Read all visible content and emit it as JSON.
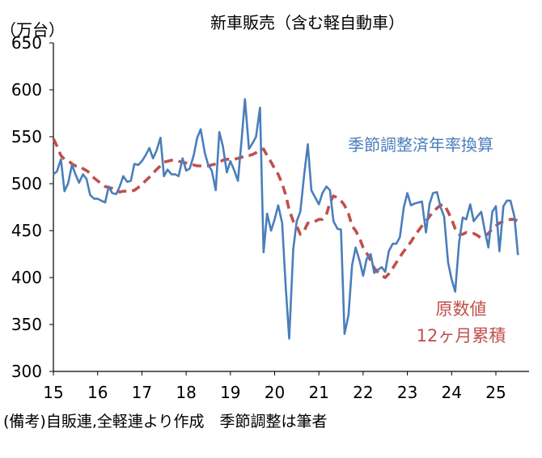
{
  "chart_data": {
    "type": "line",
    "title": "新車販売（含む軽自動車）",
    "unit_label": "（万台）",
    "ylim": [
      300,
      650
    ],
    "y_ticks": [
      300,
      350,
      400,
      450,
      500,
      550,
      600,
      650
    ],
    "x_ticks": [
      "15",
      "16",
      "17",
      "18",
      "19",
      "20",
      "21",
      "22",
      "23",
      "24",
      "25"
    ],
    "grid": false,
    "series": [
      {
        "name": "季節調整済年率換算",
        "color": "#4a7ebb",
        "dash": false,
        "points": [
          [
            15.0,
            510
          ],
          [
            15.08,
            513
          ],
          [
            15.17,
            526
          ],
          [
            15.25,
            492
          ],
          [
            15.33,
            500
          ],
          [
            15.42,
            520
          ],
          [
            15.5,
            510
          ],
          [
            15.58,
            501
          ],
          [
            15.67,
            510
          ],
          [
            15.75,
            505
          ],
          [
            15.83,
            488
          ],
          [
            15.92,
            484
          ],
          [
            16.0,
            484
          ],
          [
            16.08,
            482
          ],
          [
            16.17,
            480
          ],
          [
            16.25,
            497
          ],
          [
            16.33,
            490
          ],
          [
            16.42,
            489
          ],
          [
            16.5,
            497
          ],
          [
            16.58,
            508
          ],
          [
            16.67,
            502
          ],
          [
            16.75,
            503
          ],
          [
            16.83,
            521
          ],
          [
            16.92,
            520
          ],
          [
            17.0,
            524
          ],
          [
            17.08,
            530
          ],
          [
            17.17,
            538
          ],
          [
            17.25,
            527
          ],
          [
            17.33,
            535
          ],
          [
            17.42,
            549
          ],
          [
            17.5,
            508
          ],
          [
            17.58,
            515
          ],
          [
            17.67,
            510
          ],
          [
            17.75,
            510
          ],
          [
            17.83,
            508
          ],
          [
            17.92,
            527
          ],
          [
            18.0,
            514
          ],
          [
            18.08,
            516
          ],
          [
            18.17,
            530
          ],
          [
            18.25,
            549
          ],
          [
            18.33,
            558
          ],
          [
            18.42,
            533
          ],
          [
            18.5,
            520
          ],
          [
            18.58,
            514
          ],
          [
            18.67,
            493
          ],
          [
            18.75,
            555
          ],
          [
            18.83,
            540
          ],
          [
            18.92,
            512
          ],
          [
            19.0,
            524
          ],
          [
            19.08,
            515
          ],
          [
            19.17,
            503
          ],
          [
            19.25,
            545
          ],
          [
            19.33,
            590
          ],
          [
            19.42,
            537
          ],
          [
            19.5,
            543
          ],
          [
            19.58,
            550
          ],
          [
            19.67,
            581
          ],
          [
            19.75,
            427
          ],
          [
            19.83,
            468
          ],
          [
            19.92,
            450
          ],
          [
            20.0,
            462
          ],
          [
            20.08,
            477
          ],
          [
            20.17,
            458
          ],
          [
            20.25,
            390
          ],
          [
            20.33,
            335
          ],
          [
            20.42,
            430
          ],
          [
            20.5,
            460
          ],
          [
            20.58,
            470
          ],
          [
            20.67,
            510
          ],
          [
            20.75,
            542
          ],
          [
            20.83,
            493
          ],
          [
            20.92,
            485
          ],
          [
            21.0,
            478
          ],
          [
            21.08,
            490
          ],
          [
            21.17,
            497
          ],
          [
            21.25,
            493
          ],
          [
            21.33,
            460
          ],
          [
            21.42,
            452
          ],
          [
            21.5,
            451
          ],
          [
            21.58,
            340
          ],
          [
            21.67,
            360
          ],
          [
            21.75,
            413
          ],
          [
            21.83,
            432
          ],
          [
            21.92,
            418
          ],
          [
            22.0,
            402
          ],
          [
            22.08,
            420
          ],
          [
            22.17,
            425
          ],
          [
            22.25,
            405
          ],
          [
            22.33,
            408
          ],
          [
            22.42,
            411
          ],
          [
            22.5,
            406
          ],
          [
            22.58,
            428
          ],
          [
            22.67,
            436
          ],
          [
            22.75,
            436
          ],
          [
            22.83,
            443
          ],
          [
            22.92,
            475
          ],
          [
            23.0,
            490
          ],
          [
            23.08,
            477
          ],
          [
            23.17,
            479
          ],
          [
            23.25,
            480
          ],
          [
            23.33,
            481
          ],
          [
            23.42,
            448
          ],
          [
            23.5,
            478
          ],
          [
            23.58,
            490
          ],
          [
            23.67,
            491
          ],
          [
            23.75,
            475
          ],
          [
            23.83,
            465
          ],
          [
            23.92,
            416
          ],
          [
            24.0,
            398
          ],
          [
            24.08,
            385
          ],
          [
            24.17,
            438
          ],
          [
            24.25,
            464
          ],
          [
            24.33,
            462
          ],
          [
            24.42,
            478
          ],
          [
            24.5,
            460
          ],
          [
            24.58,
            465
          ],
          [
            24.67,
            470
          ],
          [
            24.75,
            450
          ],
          [
            24.83,
            432
          ],
          [
            24.92,
            470
          ],
          [
            25.0,
            476
          ],
          [
            25.08,
            428
          ],
          [
            25.17,
            476
          ],
          [
            25.25,
            482
          ],
          [
            25.33,
            482
          ],
          [
            25.42,
            465
          ],
          [
            25.5,
            424
          ]
        ]
      },
      {
        "name": "原数値12ヶ月累積",
        "label_lines": [
          "原数値",
          "12ヶ月累積"
        ],
        "color": "#c0504d",
        "dash": true,
        "points": [
          [
            15.0,
            548
          ],
          [
            15.08,
            540
          ],
          [
            15.17,
            530
          ],
          [
            15.25,
            526
          ],
          [
            15.33,
            525
          ],
          [
            15.42,
            521
          ],
          [
            15.5,
            519
          ],
          [
            15.58,
            519
          ],
          [
            15.67,
            516
          ],
          [
            15.75,
            514
          ],
          [
            15.83,
            511
          ],
          [
            15.92,
            506
          ],
          [
            16.0,
            503
          ],
          [
            16.08,
            500
          ],
          [
            16.17,
            497
          ],
          [
            16.25,
            496
          ],
          [
            16.33,
            495
          ],
          [
            16.42,
            493
          ],
          [
            16.5,
            491
          ],
          [
            16.58,
            492
          ],
          [
            16.67,
            492
          ],
          [
            16.75,
            492
          ],
          [
            16.83,
            493
          ],
          [
            16.92,
            496
          ],
          [
            17.0,
            499
          ],
          [
            17.08,
            503
          ],
          [
            17.17,
            507
          ],
          [
            17.25,
            511
          ],
          [
            17.33,
            515
          ],
          [
            17.42,
            519
          ],
          [
            17.5,
            523
          ],
          [
            17.58,
            524
          ],
          [
            17.67,
            525
          ],
          [
            17.75,
            525
          ],
          [
            17.83,
            524
          ],
          [
            17.92,
            523
          ],
          [
            18.0,
            522
          ],
          [
            18.08,
            521
          ],
          [
            18.17,
            520
          ],
          [
            18.25,
            519
          ],
          [
            18.33,
            519
          ],
          [
            18.42,
            519
          ],
          [
            18.5,
            519
          ],
          [
            18.58,
            520
          ],
          [
            18.67,
            521
          ],
          [
            18.75,
            523
          ],
          [
            18.83,
            525
          ],
          [
            18.92,
            526
          ],
          [
            19.0,
            526
          ],
          [
            19.08,
            526
          ],
          [
            19.17,
            527
          ],
          [
            19.25,
            528
          ],
          [
            19.33,
            530
          ],
          [
            19.42,
            530
          ],
          [
            19.5,
            531
          ],
          [
            19.58,
            533
          ],
          [
            19.67,
            536
          ],
          [
            19.75,
            537
          ],
          [
            19.83,
            530
          ],
          [
            19.92,
            523
          ],
          [
            20.0,
            516
          ],
          [
            20.08,
            510
          ],
          [
            20.17,
            500
          ],
          [
            20.25,
            488
          ],
          [
            20.33,
            472
          ],
          [
            20.42,
            460
          ],
          [
            20.5,
            455
          ],
          [
            20.58,
            446
          ],
          [
            20.67,
            450
          ],
          [
            20.75,
            458
          ],
          [
            20.83,
            458
          ],
          [
            20.92,
            460
          ],
          [
            21.0,
            462
          ],
          [
            21.08,
            462
          ],
          [
            21.17,
            467
          ],
          [
            21.25,
            480
          ],
          [
            21.33,
            487
          ],
          [
            21.42,
            485
          ],
          [
            21.5,
            482
          ],
          [
            21.58,
            477
          ],
          [
            21.67,
            468
          ],
          [
            21.75,
            455
          ],
          [
            21.83,
            450
          ],
          [
            21.92,
            442
          ],
          [
            22.0,
            432
          ],
          [
            22.08,
            426
          ],
          [
            22.17,
            418
          ],
          [
            22.25,
            410
          ],
          [
            22.33,
            406
          ],
          [
            22.42,
            402
          ],
          [
            22.5,
            400
          ],
          [
            22.58,
            404
          ],
          [
            22.67,
            410
          ],
          [
            22.75,
            416
          ],
          [
            22.83,
            422
          ],
          [
            22.92,
            428
          ],
          [
            23.0,
            433
          ],
          [
            23.08,
            438
          ],
          [
            23.17,
            445
          ],
          [
            23.25,
            450
          ],
          [
            23.33,
            455
          ],
          [
            23.42,
            460
          ],
          [
            23.5,
            465
          ],
          [
            23.58,
            470
          ],
          [
            23.67,
            474
          ],
          [
            23.75,
            477
          ],
          [
            23.83,
            478
          ],
          [
            23.92,
            470
          ],
          [
            24.0,
            462
          ],
          [
            24.08,
            452
          ],
          [
            24.17,
            446
          ],
          [
            24.25,
            446
          ],
          [
            24.33,
            448
          ],
          [
            24.42,
            447
          ],
          [
            24.5,
            447
          ],
          [
            24.58,
            445
          ],
          [
            24.67,
            442
          ],
          [
            24.75,
            444
          ],
          [
            24.83,
            447
          ],
          [
            24.92,
            452
          ],
          [
            25.0,
            455
          ],
          [
            25.08,
            458
          ],
          [
            25.17,
            460
          ],
          [
            25.25,
            461
          ],
          [
            25.33,
            462
          ],
          [
            25.42,
            462
          ],
          [
            25.5,
            460
          ]
        ]
      }
    ]
  },
  "footnote": "(備考)自販連,全軽連より作成　季節調整は筆者"
}
